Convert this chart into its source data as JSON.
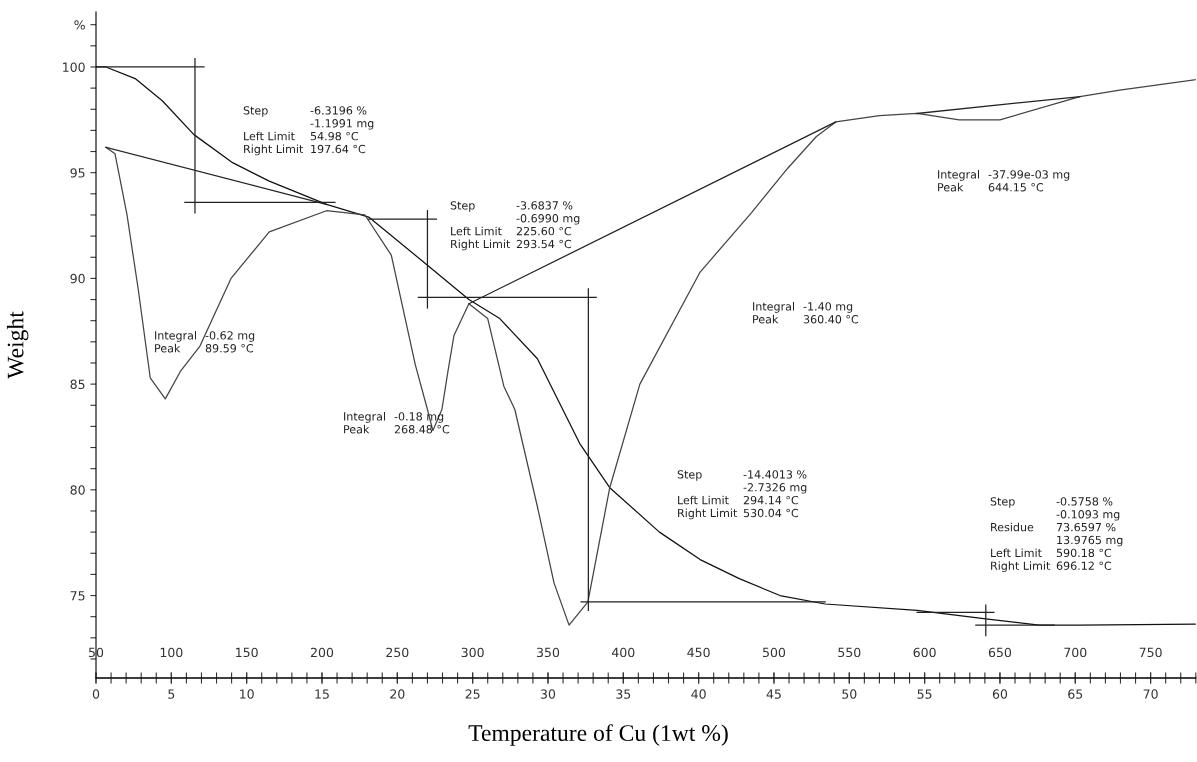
{
  "chart_data": {
    "type": "line",
    "xlabel": "Temperature of Cu (1wt %)",
    "ylabel": "Weight",
    "xlim": [
      50,
      780
    ],
    "xticks": [
      50,
      100,
      150,
      200,
      250,
      300,
      350,
      400,
      450,
      500,
      550,
      600,
      650,
      700,
      750
    ],
    "x2lim": [
      0,
      73
    ],
    "x2ticks": [
      0,
      {
        "value": 1,
        "label": null
      },
      {
        "value": 2,
        "label": null
      },
      {
        "value": 3,
        "label": null
      },
      {
        "value": 4,
        "label": null
      },
      5,
      {
        "value": 6,
        "label": null
      },
      {
        "value": 7,
        "label": null
      },
      {
        "value": 8,
        "label": null
      },
      {
        "value": 9,
        "label": null
      },
      10,
      {
        "value": 11,
        "label": null
      },
      {
        "value": 12,
        "label": null
      },
      {
        "value": 13,
        "label": null
      },
      {
        "value": 14,
        "label": null
      },
      15,
      {
        "value": 16,
        "label": null
      },
      {
        "value": 17,
        "label": null
      },
      {
        "value": 18,
        "label": null
      },
      {
        "value": 19,
        "label": null
      },
      20,
      {
        "value": 21,
        "label": null
      },
      {
        "value": 22,
        "label": null
      },
      {
        "value": 23,
        "label": null
      },
      {
        "value": 24,
        "label": null
      },
      25,
      {
        "value": 26,
        "label": null
      },
      {
        "value": 27,
        "label": null
      },
      {
        "value": 28,
        "label": null
      },
      {
        "value": 29,
        "label": null
      },
      30,
      {
        "value": 31,
        "label": null
      },
      {
        "value": 32,
        "label": null
      },
      {
        "value": 33,
        "label": null
      },
      {
        "value": 34,
        "label": null
      },
      35,
      {
        "value": 36,
        "label": null
      },
      {
        "value": 37,
        "label": null
      },
      {
        "value": 38,
        "label": null
      },
      {
        "value": 39,
        "label": null
      },
      40,
      {
        "value": 41,
        "label": null
      },
      {
        "value": 42,
        "label": null
      },
      {
        "value": 43,
        "label": null
      },
      {
        "value": 44,
        "label": null
      },
      45,
      {
        "value": 46,
        "label": null
      },
      {
        "value": 47,
        "label": null
      },
      {
        "value": 48,
        "label": null
      },
      {
        "value": 49,
        "label": null
      },
      50,
      {
        "value": 51,
        "label": null
      },
      {
        "value": 52,
        "label": null
      },
      {
        "value": 53,
        "label": null
      },
      {
        "value": 54,
        "label": null
      },
      55,
      {
        "value": 56,
        "label": null
      },
      {
        "value": 57,
        "label": null
      },
      {
        "value": 58,
        "label": null
      },
      {
        "value": 59,
        "label": null
      },
      60,
      {
        "value": 61,
        "label": null
      },
      {
        "value": 62,
        "label": null
      },
      {
        "value": 63,
        "label": null
      },
      {
        "value": 64,
        "label": null
      },
      65,
      {
        "value": 66,
        "label": null
      },
      {
        "value": 67,
        "label": null
      },
      {
        "value": 68,
        "label": null
      },
      {
        "value": 69,
        "label": null
      },
      70,
      {
        "value": 71,
        "label": null
      },
      {
        "value": 72,
        "label": null
      },
      {
        "value": 73,
        "label": null
      }
    ],
    "ylim": [
      71.1,
      102.6
    ],
    "yticks": [
      {
        "value": 72,
        "label": null
      },
      {
        "value": 73,
        "label": null
      },
      {
        "value": 74,
        "label": null
      },
      75,
      {
        "value": 76,
        "label": null
      },
      {
        "value": 77,
        "label": null
      },
      {
        "value": 78,
        "label": null
      },
      {
        "value": 79,
        "label": null
      },
      80,
      {
        "value": 81,
        "label": null
      },
      {
        "value": 82,
        "label": null
      },
      {
        "value": 83,
        "label": null
      },
      {
        "value": 84,
        "label": null
      },
      85,
      {
        "value": 86,
        "label": null
      },
      {
        "value": 87,
        "label": null
      },
      {
        "value": 88,
        "label": null
      },
      {
        "value": 89,
        "label": null
      },
      90,
      {
        "value": 91,
        "label": null
      },
      {
        "value": 92,
        "label": null
      },
      {
        "value": 93,
        "label": null
      },
      {
        "value": 94,
        "label": null
      },
      95,
      {
        "value": 96,
        "label": null
      },
      {
        "value": 97,
        "label": null
      },
      {
        "value": 98,
        "label": null
      },
      {
        "value": 99,
        "label": null
      },
      100,
      {
        "value": 101,
        "label": null
      },
      {
        "value": 102,
        "label": "%"
      }
    ],
    "grid": false,
    "legend": false,
    "line_style": "solid",
    "marker": "none",
    "series": [
      {
        "color": "#111111",
        "x": [
          50,
          56.6,
          76,
          94,
          115,
          140,
          165,
          203,
          231,
          267,
          297.5,
          318,
          343,
          371,
          391,
          424,
          451,
          477,
          504,
          534,
          595,
          640.6,
          676,
          703,
          780
        ],
        "values": [
          100,
          100,
          99.45,
          98.4,
          96.8,
          95.5,
          94.6,
          93.5,
          92.9,
          90.8,
          89,
          88.1,
          86.2,
          82.2,
          80.1,
          78,
          76.7,
          75.8,
          75,
          74.6,
          74.3,
          73.9,
          73.6,
          73.6,
          73.65
        ]
      },
      {
        "color": "#444444",
        "x": [
          56.6,
          62.6,
          70.6,
          78,
          86,
          96,
          106,
          119,
          139.6,
          165,
          203,
          228.5,
          246,
          262,
          270,
          273.6,
          279.6,
          283.6,
          287.6,
          297.5,
          310,
          320.7,
          328,
          343,
          354,
          364,
          376.5,
          391,
          411,
          451,
          485,
          509,
          528,
          541,
          570,
          595,
          623,
          650,
          703,
          729.5,
          780
        ],
        "values": [
          96.2,
          95.9,
          93,
          89.5,
          85.3,
          84.3,
          85.6,
          86.8,
          90,
          92.2,
          93.2,
          93,
          91.1,
          85.9,
          83.8,
          82.8,
          83.8,
          85.6,
          87.3,
          88.8,
          88.1,
          84.9,
          83.8,
          79.2,
          75.6,
          73.6,
          74.7,
          80.1,
          85,
          90.3,
          93.1,
          95.2,
          96.7,
          97.4,
          97.7,
          97.8,
          97.5,
          97.5,
          98.6,
          98.9,
          99.4
        ]
      },
      {
        "color": "#222222",
        "x": [
          56.6,
          203
        ],
        "values": [
          96.2,
          93.5
        ]
      },
      {
        "color": "#222222",
        "x": [
          297.5,
          541
        ],
        "values": [
          88.8,
          97.4
        ]
      },
      {
        "color": "#222222",
        "x": [
          595,
          703
        ],
        "values": [
          97.8,
          98.6
        ]
      },
      {
        "color": "#222222",
        "x": [
          50,
          121.7
        ],
        "values": [
          100,
          100
        ]
      },
      {
        "color": "#222222",
        "x": [
          115.7,
          115.7
        ],
        "values": [
          100.4,
          93.1
        ]
      },
      {
        "color": "#222222",
        "x": [
          109,
          208.6
        ],
        "values": [
          93.6,
          93.6
        ]
      },
      {
        "color": "#222222",
        "x": [
          231,
          276
        ],
        "values": [
          92.8,
          92.8
        ]
      },
      {
        "color": "#222222",
        "x": [
          270,
          270
        ],
        "values": [
          93.2,
          88.6
        ]
      },
      {
        "color": "#222222",
        "x": [
          264,
          382
        ],
        "values": [
          89.1,
          89.1
        ]
      },
      {
        "color": "#222222",
        "x": [
          376.8,
          376.8
        ],
        "values": [
          89.5,
          74.3
        ]
      },
      {
        "color": "#222222",
        "x": [
          372,
          534
        ],
        "values": [
          74.7,
          74.7
        ]
      },
      {
        "color": "#222222",
        "x": [
          595,
          646
        ],
        "values": [
          74.2,
          74.2
        ]
      },
      {
        "color": "#222222",
        "x": [
          640.6,
          640.6
        ],
        "values": [
          74.55,
          73.1
        ]
      },
      {
        "color": "#222222",
        "x": [
          634,
          686
        ],
        "values": [
          73.6,
          73.6
        ]
      }
    ],
    "annotations": [
      "Step\n\nLeft Limit\nRight Limit",
      "-6.3196 %\n-1.1991 mg\n54.98 °C\n197.64 °C",
      "Step\n\nLeft Limit\nRight Limit",
      "-3.6837 %\n-0.6990 mg\n225.60 °C\n293.54 °C",
      "Integral\nPeak",
      "-0.62 mg\n89.59 °C",
      "Integral\nPeak",
      "-0.18 mg\n268.48 °C",
      "Integral\nPeak",
      "-1.40 mg\n360.40 °C",
      "Integral\nPeak",
      "-37.99e-03 mg\n644.15 °C",
      "Step\n\nLeft Limit\nRight Limit",
      "-14.4013 %\n-2.7326 mg\n294.14 °C\n530.04 °C",
      "Step\n\nResidue\n\nLeft Limit\nRight Limit",
      "-0.5758 %\n-0.1093 mg\n73.6597 %\n13.9765 mg\n590.18 °C\n696.12 °C"
    ]
  }
}
